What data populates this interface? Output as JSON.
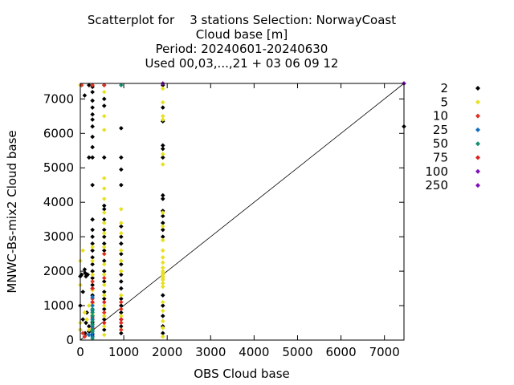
{
  "chart_data": {
    "type": "scatter",
    "title_lines": [
      "Scatterplot for    3 stations Selection: NorwayCoast",
      "Cloud base [m]",
      "Period: 20240601-20240630",
      "Used 00,03,...,21 + 03 06 09 12"
    ],
    "xlabel": "OBS Cloud base",
    "ylabel": "MNWC-Bs-mix2 Cloud base",
    "xlim": [
      0,
      7450
    ],
    "ylim": [
      0,
      7450
    ],
    "x_ticks": [
      0,
      1000,
      2000,
      3000,
      4000,
      5000,
      6000,
      7000
    ],
    "y_ticks": [
      0,
      1000,
      2000,
      3000,
      4000,
      5000,
      6000,
      7000
    ],
    "diagonal": true,
    "grid": false,
    "legend_position": "right",
    "series": [
      {
        "name": "2",
        "color": "#000000",
        "points": [
          [
            0,
            1850
          ],
          [
            0,
            1000
          ],
          [
            0,
            300
          ],
          [
            30,
            1900
          ],
          [
            60,
            1400
          ],
          [
            60,
            600
          ],
          [
            100,
            7100
          ],
          [
            100,
            2050
          ],
          [
            110,
            1950
          ],
          [
            130,
            1850
          ],
          [
            150,
            1900
          ],
          [
            170,
            1900
          ],
          [
            130,
            500
          ],
          [
            110,
            200
          ],
          [
            150,
            800
          ],
          [
            200,
            5300
          ],
          [
            200,
            7400
          ],
          [
            200,
            400
          ],
          [
            200,
            250
          ],
          [
            280,
            7350
          ],
          [
            280,
            7200
          ],
          [
            280,
            6950
          ],
          [
            280,
            6750
          ],
          [
            280,
            6550
          ],
          [
            280,
            6400
          ],
          [
            280,
            6200
          ],
          [
            280,
            5900
          ],
          [
            280,
            5600
          ],
          [
            280,
            5300
          ],
          [
            280,
            4500
          ],
          [
            280,
            3500
          ],
          [
            280,
            3200
          ],
          [
            280,
            3000
          ],
          [
            280,
            2800
          ],
          [
            280,
            2600
          ],
          [
            280,
            2400
          ],
          [
            280,
            2200
          ],
          [
            280,
            2000
          ],
          [
            280,
            1800
          ],
          [
            280,
            1600
          ],
          [
            280,
            1500
          ],
          [
            280,
            1300
          ],
          [
            280,
            1100
          ],
          [
            280,
            900
          ],
          [
            280,
            700
          ],
          [
            280,
            500
          ],
          [
            280,
            300
          ],
          [
            280,
            150
          ],
          [
            550,
            7400
          ],
          [
            550,
            7000
          ],
          [
            550,
            6800
          ],
          [
            550,
            5300
          ],
          [
            550,
            3900
          ],
          [
            550,
            3800
          ],
          [
            550,
            3500
          ],
          [
            550,
            3200
          ],
          [
            550,
            3000
          ],
          [
            550,
            2800
          ],
          [
            550,
            2600
          ],
          [
            550,
            2300
          ],
          [
            550,
            2000
          ],
          [
            550,
            1700
          ],
          [
            550,
            1400
          ],
          [
            550,
            1200
          ],
          [
            550,
            900
          ],
          [
            550,
            600
          ],
          [
            550,
            300
          ],
          [
            940,
            6150
          ],
          [
            940,
            5300
          ],
          [
            940,
            4950
          ],
          [
            940,
            4500
          ],
          [
            940,
            3300
          ],
          [
            940,
            3000
          ],
          [
            940,
            2800
          ],
          [
            940,
            2500
          ],
          [
            940,
            2200
          ],
          [
            940,
            1900
          ],
          [
            940,
            1700
          ],
          [
            940,
            1500
          ],
          [
            940,
            1200
          ],
          [
            940,
            1000
          ],
          [
            940,
            800
          ],
          [
            940,
            600
          ],
          [
            940,
            400
          ],
          [
            940,
            200
          ],
          [
            1900,
            7400
          ],
          [
            1900,
            6750
          ],
          [
            1900,
            6350
          ],
          [
            1900,
            5650
          ],
          [
            1900,
            5550
          ],
          [
            1900,
            5300
          ],
          [
            1900,
            4200
          ],
          [
            1900,
            4100
          ],
          [
            1900,
            3750
          ],
          [
            1900,
            3600
          ],
          [
            1900,
            3400
          ],
          [
            1900,
            3200
          ],
          [
            1900,
            3000
          ],
          [
            1900,
            1300
          ],
          [
            1900,
            1000
          ],
          [
            1900,
            700
          ],
          [
            1900,
            400
          ],
          [
            1900,
            200
          ],
          [
            7450,
            6200
          ],
          [
            7450,
            7450
          ]
        ]
      },
      {
        "name": "5",
        "color": "#e8e020",
        "points": [
          [
            0,
            7400
          ],
          [
            0,
            2300
          ],
          [
            0,
            1600
          ],
          [
            0,
            500
          ],
          [
            0,
            300
          ],
          [
            60,
            2600
          ],
          [
            100,
            800
          ],
          [
            150,
            600
          ],
          [
            200,
            1000
          ],
          [
            200,
            300
          ],
          [
            280,
            2700
          ],
          [
            280,
            2300
          ],
          [
            280,
            1900
          ],
          [
            280,
            1450
          ],
          [
            280,
            1050
          ],
          [
            280,
            750
          ],
          [
            280,
            450
          ],
          [
            550,
            7200
          ],
          [
            550,
            6500
          ],
          [
            550,
            6100
          ],
          [
            550,
            4700
          ],
          [
            550,
            4400
          ],
          [
            550,
            4100
          ],
          [
            550,
            3700
          ],
          [
            550,
            3400
          ],
          [
            550,
            3100
          ],
          [
            550,
            2700
          ],
          [
            550,
            2500
          ],
          [
            550,
            2200
          ],
          [
            550,
            1900
          ],
          [
            550,
            1600
          ],
          [
            550,
            1300
          ],
          [
            550,
            1000
          ],
          [
            550,
            700
          ],
          [
            550,
            400
          ],
          [
            550,
            150
          ],
          [
            940,
            3800
          ],
          [
            940,
            3400
          ],
          [
            940,
            3100
          ],
          [
            940,
            2600
          ],
          [
            940,
            2300
          ],
          [
            940,
            2000
          ],
          [
            940,
            1300
          ],
          [
            940,
            700
          ],
          [
            940,
            300
          ],
          [
            1900,
            7300
          ],
          [
            1900,
            6900
          ],
          [
            1900,
            6500
          ],
          [
            1900,
            6400
          ],
          [
            1900,
            5400
          ],
          [
            1900,
            5100
          ],
          [
            1900,
            3700
          ],
          [
            1900,
            3300
          ],
          [
            1900,
            2900
          ],
          [
            1900,
            2600
          ],
          [
            1900,
            2400
          ],
          [
            1900,
            2250
          ],
          [
            1900,
            2100
          ],
          [
            1900,
            2000
          ],
          [
            1900,
            1950
          ],
          [
            1900,
            1900
          ],
          [
            1900,
            1850
          ],
          [
            1900,
            1800
          ],
          [
            1900,
            1750
          ],
          [
            1900,
            1650
          ],
          [
            1900,
            1550
          ],
          [
            1900,
            1100
          ],
          [
            1900,
            850
          ],
          [
            1900,
            550
          ],
          [
            1900,
            350
          ],
          [
            1900,
            100
          ]
        ]
      },
      {
        "name": "10",
        "color": "#e03020",
        "points": [
          [
            30,
            7400
          ],
          [
            280,
            7400
          ],
          [
            550,
            7400
          ],
          [
            550,
            2500
          ],
          [
            550,
            1800
          ],
          [
            550,
            800
          ],
          [
            280,
            1700
          ],
          [
            280,
            1200
          ],
          [
            280,
            650
          ],
          [
            280,
            350
          ],
          [
            940,
            1100
          ],
          [
            940,
            900
          ],
          [
            940,
            500
          ],
          [
            940,
            300
          ],
          [
            60,
            200
          ],
          [
            100,
            100
          ]
        ]
      },
      {
        "name": "25",
        "color": "#1070c0",
        "points": [
          [
            280,
            1250
          ],
          [
            280,
            1000
          ],
          [
            280,
            850
          ],
          [
            280,
            600
          ],
          [
            280,
            400
          ],
          [
            280,
            200
          ],
          [
            280,
            100
          ],
          [
            200,
            150
          ]
        ]
      },
      {
        "name": "50",
        "color": "#109070",
        "points": [
          [
            940,
            7400
          ],
          [
            280,
            900
          ],
          [
            280,
            800
          ],
          [
            280,
            700
          ],
          [
            280,
            550
          ],
          [
            280,
            450
          ],
          [
            280,
            300
          ],
          [
            280,
            250
          ],
          [
            280,
            50
          ]
        ]
      },
      {
        "name": "75",
        "color": "#e02020",
        "points": [
          [
            280,
            1500
          ],
          [
            280,
            1100
          ],
          [
            550,
            1100
          ],
          [
            550,
            500
          ],
          [
            940,
            600
          ],
          [
            1900,
            7450
          ]
        ]
      },
      {
        "name": "100",
        "color": "#8010c0",
        "points": [
          [
            1900,
            7450
          ],
          [
            7450,
            7450
          ]
        ]
      },
      {
        "name": "250",
        "color": "#8010c0",
        "points": []
      }
    ]
  }
}
